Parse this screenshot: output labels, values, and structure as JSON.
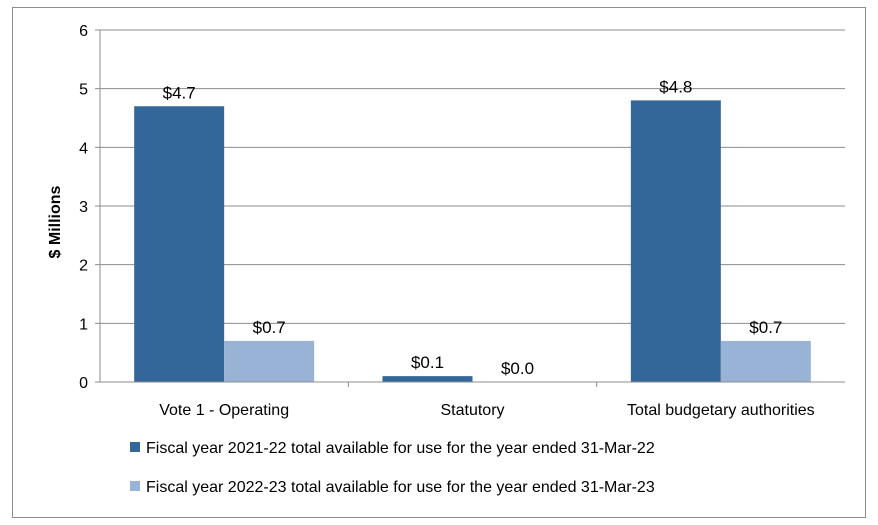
{
  "chart_data": {
    "type": "bar",
    "categories": [
      "Vote 1 - Operating",
      "Statutory",
      "Total budgetary authorities"
    ],
    "series": [
      {
        "name": "Fiscal year 2021-22 total available for use for the year ended 31-Mar-22",
        "values": [
          4.7,
          0.1,
          4.8
        ],
        "labels": [
          "$4.7",
          "$0.1",
          "$4.8"
        ],
        "color": "#336699"
      },
      {
        "name": "Fiscal year 2022-23 total available for use for the year ended 31-Mar-23",
        "values": [
          0.7,
          0.0,
          0.7
        ],
        "labels": [
          "$0.7",
          "$0.0",
          "$0.7"
        ],
        "color": "#99b3d6"
      }
    ],
    "ylabel": "$ Millions",
    "xlabel": "",
    "ylim": [
      0,
      6
    ],
    "yticks": [
      "0",
      "1",
      "2",
      "3",
      "4",
      "5",
      "6"
    ],
    "grid": true,
    "legend_position": "bottom"
  }
}
